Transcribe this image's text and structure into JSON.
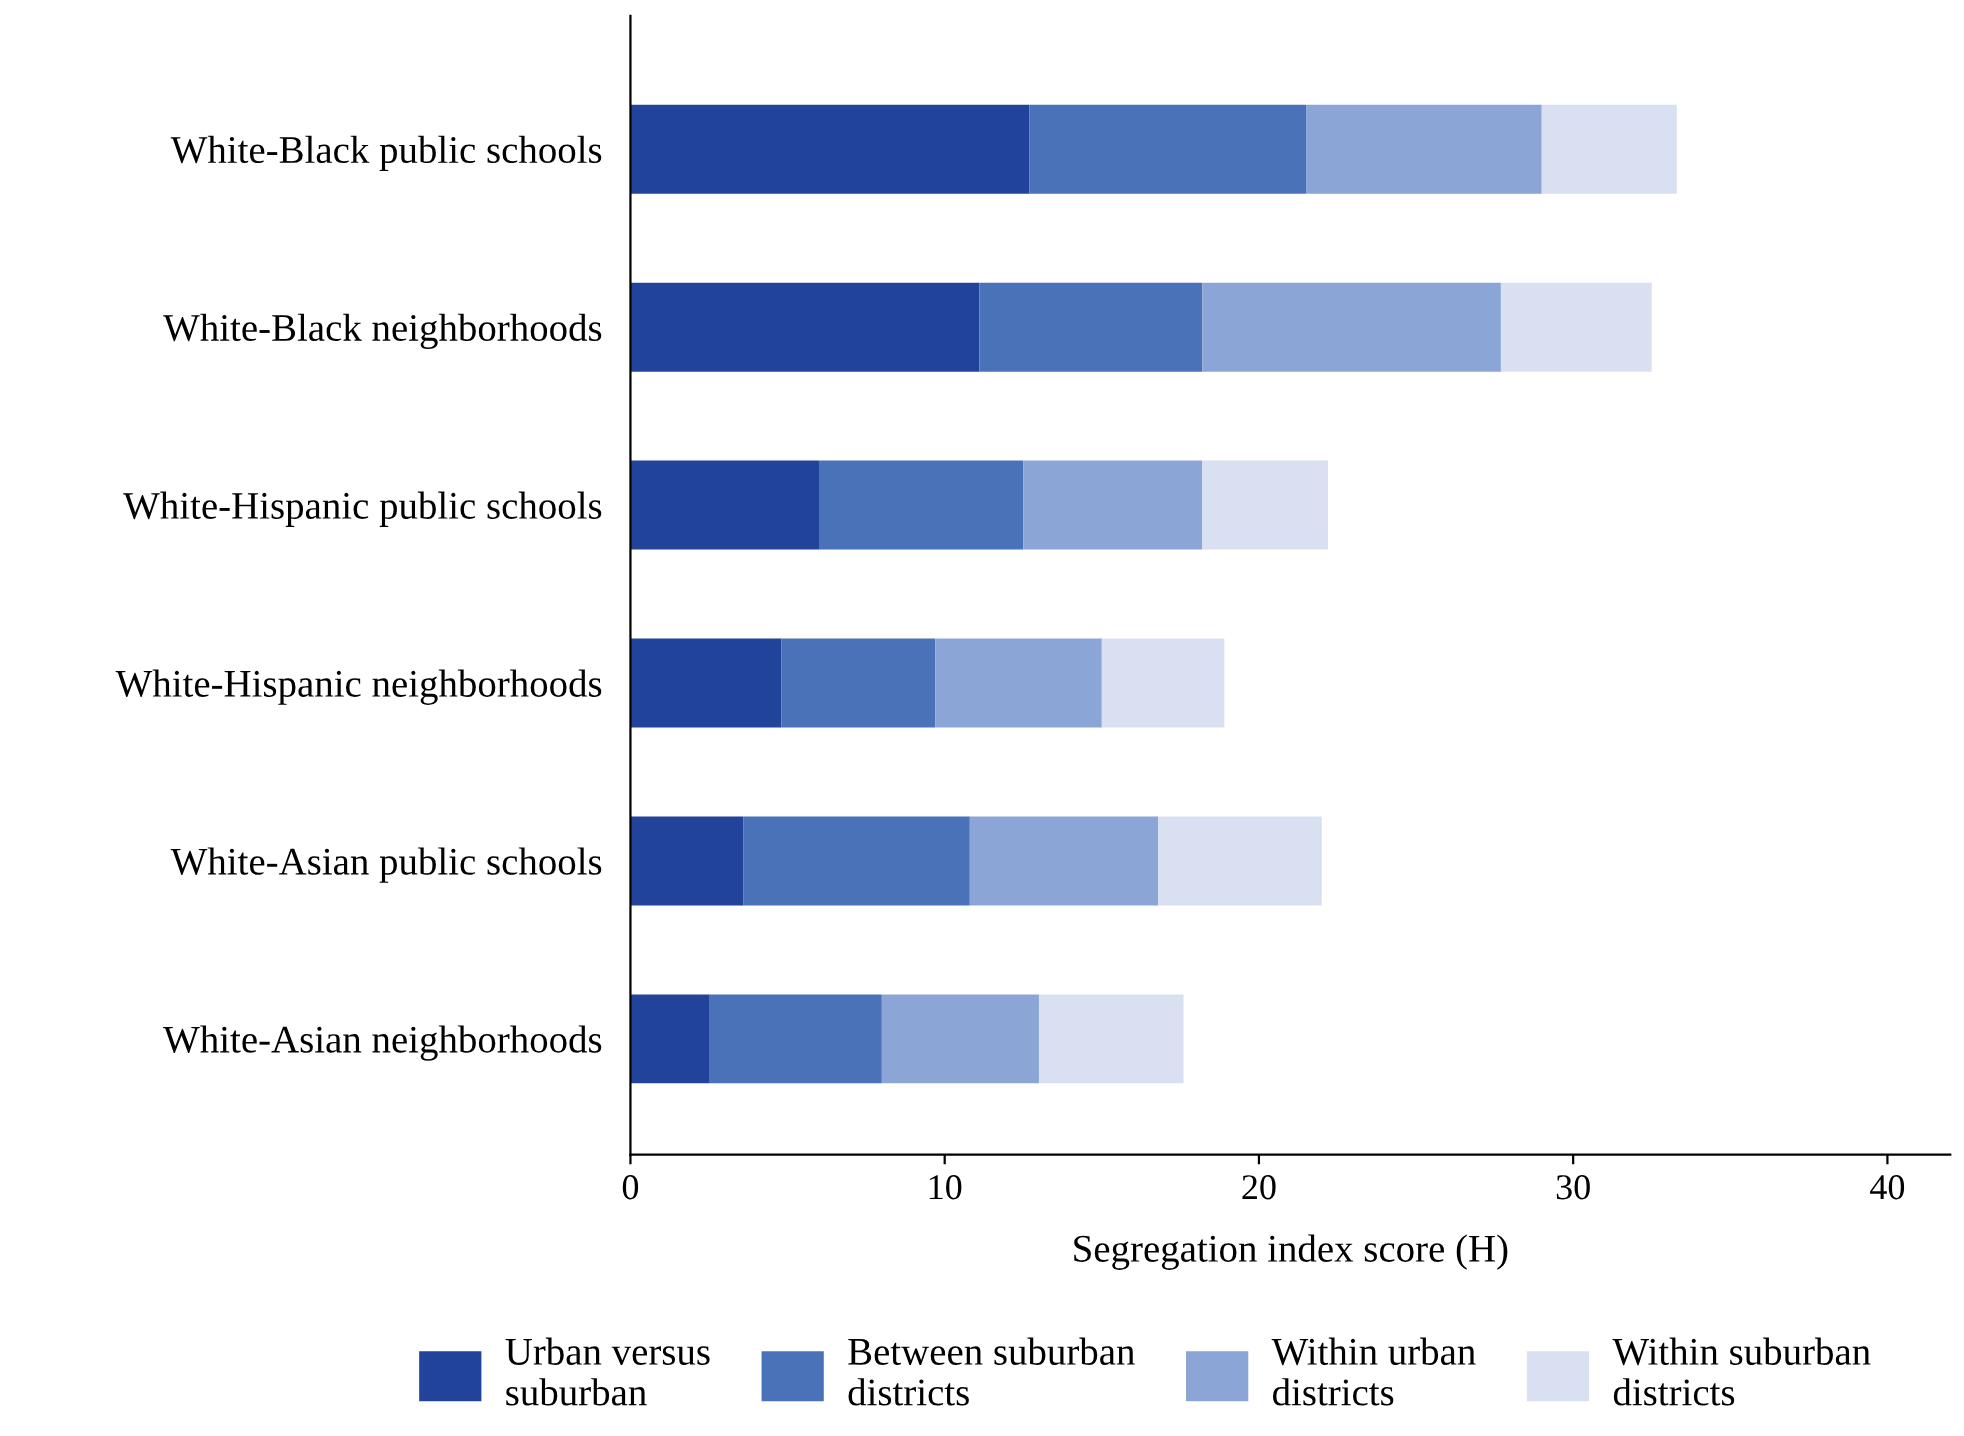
{
  "chart_data": {
    "type": "bar",
    "orientation": "horizontal",
    "stacked": true,
    "xlabel": "Segregation index score (H)",
    "categories": [
      "White-Black public schools",
      "White-Black neighborhoods",
      "White-Hispanic public schools",
      "White-Hispanic neighborhoods",
      "White-Asian public schools",
      "White-Asian neighborhoods"
    ],
    "series": [
      {
        "name": "Urban versus\nsuburban",
        "color": "#22439a",
        "values": [
          12.7,
          11.1,
          6.0,
          4.8,
          3.6,
          2.5
        ]
      },
      {
        "name": "Between suburban\ndistricts",
        "color": "#4a72b8",
        "values": [
          8.8,
          7.1,
          6.5,
          4.9,
          7.2,
          5.5
        ]
      },
      {
        "name": "Within urban\ndistricts",
        "color": "#8aa5d6",
        "values": [
          7.5,
          9.5,
          5.7,
          5.3,
          6.0,
          5.0
        ]
      },
      {
        "name": "Within suburban\ndistricts",
        "color": "#d9e0f2",
        "values": [
          4.3,
          4.8,
          4.0,
          3.9,
          5.2,
          4.6
        ]
      }
    ],
    "xlim": [
      0,
      42
    ],
    "xticks": [
      0,
      10,
      20,
      30,
      40
    ],
    "grid": false,
    "legend": "bottom"
  }
}
